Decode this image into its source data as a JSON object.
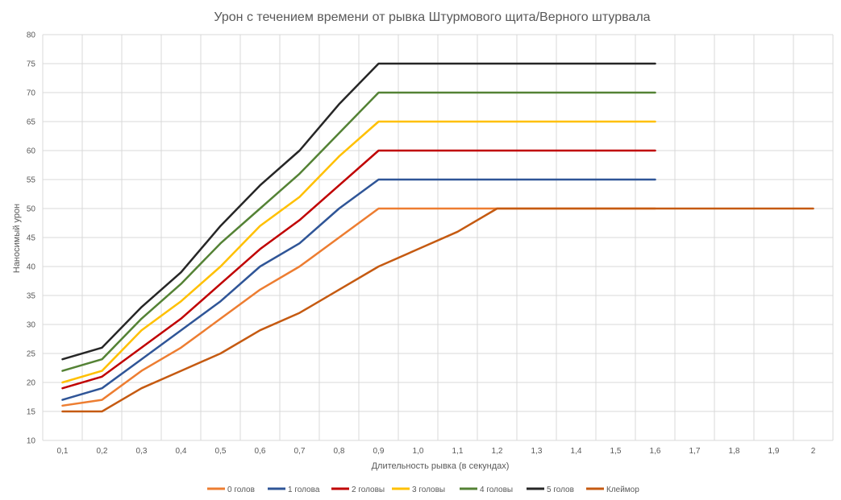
{
  "chart_data": {
    "type": "line",
    "title": "Урон с течением времени от рывка Штурмового щита/Верного штурвала",
    "xlabel": "Длительность рывка (в секундах)",
    "ylabel": "Наносимый урон",
    "ylim": [
      10,
      80
    ],
    "y_ticks": [
      10,
      15,
      20,
      25,
      30,
      35,
      40,
      45,
      50,
      55,
      60,
      65,
      70,
      75,
      80
    ],
    "grid": true,
    "legend_position": "bottom",
    "categories": [
      "0,1",
      "0,2",
      "0,3",
      "0,4",
      "0,5",
      "0,6",
      "0,7",
      "0,8",
      "0,9",
      "1,0",
      "1,1",
      "1,2",
      "1,3",
      "1,4",
      "1,5",
      "1,6",
      "1,7",
      "1,8",
      "1,9",
      "2"
    ],
    "series": [
      {
        "name": "0 голов",
        "color": "#ed7d31",
        "values": [
          16,
          17,
          22,
          26,
          31,
          36,
          40,
          45,
          50,
          50,
          50,
          50,
          50,
          50,
          50,
          50,
          null,
          null,
          null,
          null
        ]
      },
      {
        "name": "1 голова",
        "color": "#2f5597",
        "values": [
          17,
          19,
          24,
          29,
          34,
          40,
          44,
          50,
          55,
          55,
          55,
          55,
          55,
          55,
          55,
          55,
          null,
          null,
          null,
          null
        ]
      },
      {
        "name": "2 головы",
        "color": "#c00000",
        "values": [
          19,
          21,
          26,
          31,
          37,
          43,
          48,
          54,
          60,
          60,
          60,
          60,
          60,
          60,
          60,
          60,
          null,
          null,
          null,
          null
        ]
      },
      {
        "name": "3 головы",
        "color": "#ffc000",
        "values": [
          20,
          22,
          29,
          34,
          40,
          47,
          52,
          59,
          65,
          65,
          65,
          65,
          65,
          65,
          65,
          65,
          null,
          null,
          null,
          null
        ]
      },
      {
        "name": "4 головы",
        "color": "#548235",
        "values": [
          22,
          24,
          31,
          37,
          44,
          50,
          56,
          63,
          70,
          70,
          70,
          70,
          70,
          70,
          70,
          70,
          null,
          null,
          null,
          null
        ]
      },
      {
        "name": "5 голов",
        "color": "#262626",
        "values": [
          24,
          26,
          33,
          39,
          47,
          54,
          60,
          68,
          75,
          75,
          75,
          75,
          75,
          75,
          75,
          75,
          null,
          null,
          null,
          null
        ]
      },
      {
        "name": "Клеймор",
        "color": "#c55a11",
        "values": [
          15,
          15,
          19,
          22,
          25,
          29,
          32,
          36,
          40,
          43,
          46,
          50,
          50,
          50,
          50,
          50,
          50,
          50,
          50,
          50
        ]
      }
    ]
  }
}
